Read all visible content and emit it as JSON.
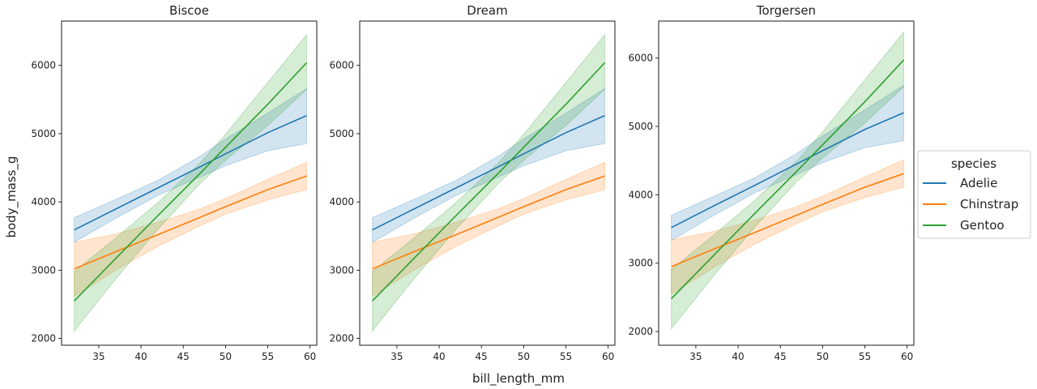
{
  "chart_data": {
    "type": "line",
    "xlabel": "bill_length_mm",
    "ylabel": "body_mass_g",
    "legend": {
      "title": "species",
      "placement": "right",
      "entries": [
        {
          "name": "Adelie",
          "color": "#1f77b4"
        },
        {
          "name": "Chinstrap",
          "color": "#ff7f0e"
        },
        {
          "name": "Gentoo",
          "color": "#2ca02c"
        }
      ]
    },
    "xticks": [
      35,
      40,
      45,
      50,
      55,
      60
    ],
    "panels": [
      {
        "title": "Biscoe",
        "xlim": [
          30.6,
          60.8
        ],
        "ylim": [
          1900,
          6650
        ],
        "yticks": [
          2000,
          3000,
          4000,
          5000,
          6000
        ],
        "series": [
          {
            "name": "Adelie",
            "color": "#1f77b4",
            "x": [
              32.1,
              37,
              42,
              47,
              50,
              55,
              59.6
            ],
            "y": [
              3590,
              3895,
              4205,
              4515,
              4705,
              5015,
              5265
            ],
            "lower": [
              3410,
              3760,
              4095,
              4365,
              4530,
              4750,
              4855
            ],
            "upper": [
              3770,
              4035,
              4315,
              4670,
              4920,
              5300,
              5660
            ]
          },
          {
            "name": "Chinstrap",
            "color": "#ff7f0e",
            "x": [
              32.1,
              37,
              42,
              47,
              50,
              55,
              59.6
            ],
            "y": [
              3020,
              3270,
              3520,
              3775,
              3930,
              4180,
              4380
            ],
            "lower": [
              2620,
              3000,
              3350,
              3650,
              3820,
              4030,
              4180
            ],
            "upper": [
              3410,
              3530,
              3700,
              3900,
              4050,
              4330,
              4580
            ]
          },
          {
            "name": "Gentoo",
            "color": "#2ca02c",
            "x": [
              32.1,
              37,
              42,
              47,
              50,
              55,
              59.6
            ],
            "y": [
              2550,
              3170,
              3800,
              4420,
              4800,
              5430,
              6040
            ],
            "lower": [
              2110,
              2870,
              3600,
              4270,
              4610,
              5120,
              5650
            ],
            "upper": [
              2980,
              3470,
              3990,
              4570,
              4990,
              5750,
              6450
            ]
          }
        ]
      },
      {
        "title": "Dream",
        "xlim": [
          30.6,
          60.8
        ],
        "ylim": [
          1900,
          6650
        ],
        "yticks": [
          2000,
          3000,
          4000,
          5000,
          6000
        ],
        "series": [
          {
            "name": "Adelie",
            "color": "#1f77b4",
            "x": [
              32.1,
              37,
              42,
              47,
              50,
              55,
              59.6
            ],
            "y": [
              3590,
              3895,
              4205,
              4515,
              4705,
              5015,
              5265
            ],
            "lower": [
              3410,
              3760,
              4095,
              4365,
              4530,
              4750,
              4855
            ],
            "upper": [
              3770,
              4035,
              4315,
              4670,
              4920,
              5300,
              5660
            ]
          },
          {
            "name": "Chinstrap",
            "color": "#ff7f0e",
            "x": [
              32.1,
              37,
              42,
              47,
              50,
              55,
              59.6
            ],
            "y": [
              3020,
              3270,
              3520,
              3775,
              3930,
              4180,
              4380
            ],
            "lower": [
              2620,
              3000,
              3350,
              3650,
              3820,
              4030,
              4180
            ],
            "upper": [
              3410,
              3530,
              3700,
              3900,
              4050,
              4330,
              4580
            ]
          },
          {
            "name": "Gentoo",
            "color": "#2ca02c",
            "x": [
              32.1,
              37,
              42,
              47,
              50,
              55,
              59.6
            ],
            "y": [
              2550,
              3170,
              3800,
              4420,
              4800,
              5430,
              6040
            ],
            "lower": [
              2110,
              2870,
              3600,
              4270,
              4610,
              5120,
              5650
            ],
            "upper": [
              2980,
              3470,
              3990,
              4570,
              4990,
              5750,
              6450
            ]
          }
        ]
      },
      {
        "title": "Torgersen",
        "xlim": [
          30.6,
          60.8
        ],
        "ylim": [
          1800,
          6540
        ],
        "yticks": [
          2000,
          3000,
          4000,
          5000,
          6000
        ],
        "series": [
          {
            "name": "Adelie",
            "color": "#1f77b4",
            "x": [
              32.1,
              37,
              42,
              47,
              50,
              55,
              59.6
            ],
            "y": [
              3520,
              3830,
              4140,
              4455,
              4645,
              4955,
              5200
            ],
            "lower": [
              3330,
              3690,
              4030,
              4300,
              4470,
              4690,
              4790
            ],
            "upper": [
              3700,
              3970,
              4250,
              4610,
              4860,
              5240,
              5600
            ]
          },
          {
            "name": "Chinstrap",
            "color": "#ff7f0e",
            "x": [
              32.1,
              37,
              42,
              47,
              50,
              55,
              59.6
            ],
            "y": [
              2950,
              3200,
              3450,
              3705,
              3860,
              4110,
              4310
            ],
            "lower": [
              2550,
              2930,
              3280,
              3580,
              3750,
              3960,
              4110
            ],
            "upper": [
              3340,
              3460,
              3630,
              3830,
              3980,
              4260,
              4510
            ]
          },
          {
            "name": "Gentoo",
            "color": "#2ca02c",
            "x": [
              32.1,
              37,
              42,
              47,
              50,
              55,
              59.6
            ],
            "y": [
              2480,
              3100,
              3730,
              4350,
              4730,
              5360,
              5970
            ],
            "lower": [
              2040,
              2800,
              3530,
              4200,
              4540,
              5050,
              5580
            ],
            "upper": [
              2910,
              3400,
              3920,
              4500,
              4920,
              5680,
              6380
            ]
          }
        ]
      }
    ]
  }
}
